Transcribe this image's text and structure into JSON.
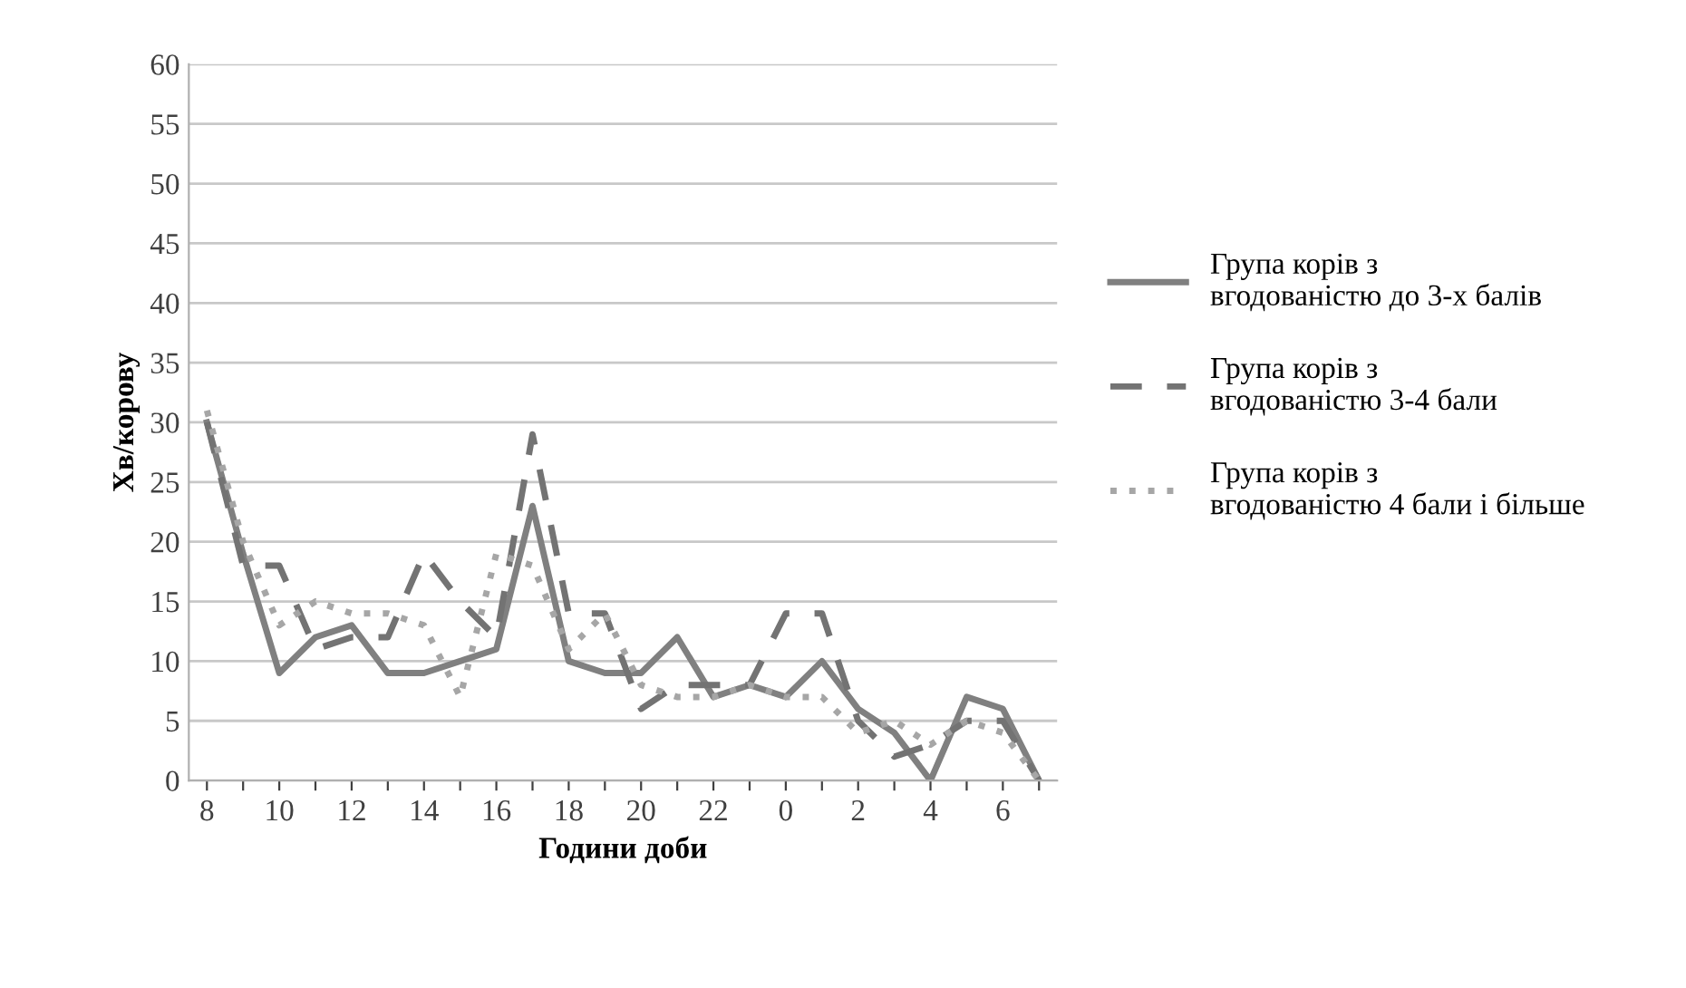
{
  "chart_data": {
    "type": "line",
    "xlabel": "Години доби",
    "ylabel": "Хв/корову",
    "categories": [
      "8",
      null,
      "10",
      null,
      "12",
      null,
      "14",
      null,
      "16",
      null,
      "18",
      null,
      "20",
      null,
      "22",
      null,
      "0",
      null,
      "2",
      null,
      "4",
      null,
      "6",
      null
    ],
    "series": [
      {
        "name": "Група корів з вгодованістю до 3-х балів",
        "color": "#808080",
        "line_style": "solid",
        "values": [
          30,
          19,
          9,
          12,
          13,
          9,
          9,
          10,
          11,
          23,
          10,
          9,
          9,
          12,
          7,
          8,
          7,
          10,
          6,
          4,
          0,
          7,
          6,
          0
        ]
      },
      {
        "name": "Група корів з вгодованістю 3-4 бали",
        "color": "#737373",
        "line_style": "dashed",
        "values": [
          30,
          18,
          18,
          11,
          12,
          12,
          19,
          15,
          12,
          29,
          14,
          14,
          6,
          8,
          8,
          8,
          14,
          14,
          5,
          2,
          3,
          5,
          5,
          0
        ]
      },
      {
        "name": "Група корів з вгодованістю 4 бали і більше",
        "color": "#a6a6a6",
        "line_style": "dotted",
        "values": [
          31,
          20,
          13,
          15,
          14,
          14,
          13,
          7,
          19,
          18,
          11,
          14,
          8,
          7,
          7,
          8,
          7,
          7,
          4,
          5,
          3,
          5,
          4,
          0
        ]
      }
    ],
    "ylim": [
      0,
      60
    ],
    "yticks": [
      0,
      5,
      10,
      15,
      20,
      25,
      30,
      35,
      40,
      45,
      50,
      55,
      60
    ],
    "grid": "y",
    "legend": "right"
  }
}
